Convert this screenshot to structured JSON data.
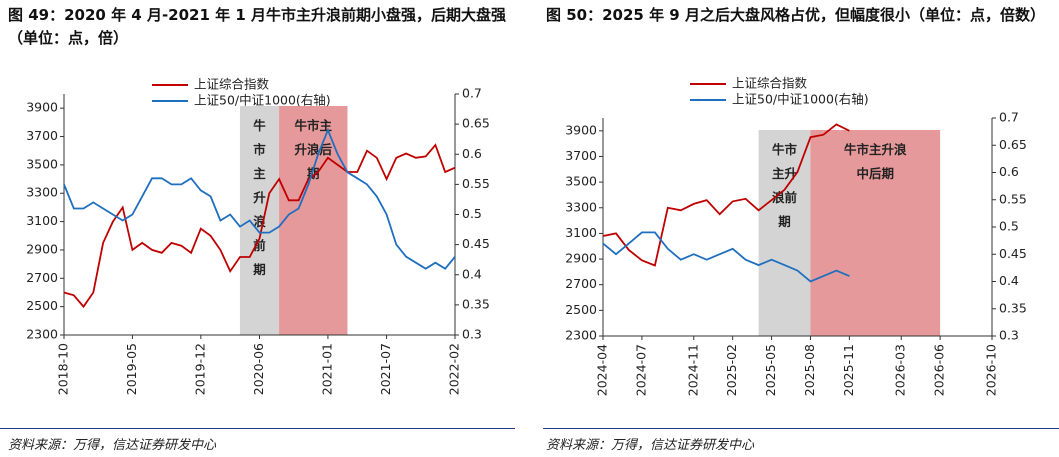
{
  "chart_data": [
    {
      "type": "line",
      "title": "图 49：2020 年 4 月-2021 年 1 月牛市主升浪前期小盘强，后期大盘强（单位：点，倍）",
      "source": "资料来源：万得，信达证券研发中心",
      "x": [
        "2018-10",
        "2018-11",
        "2018-12",
        "2019-01",
        "2019-02",
        "2019-03",
        "2019-04",
        "2019-05",
        "2019-06",
        "2019-07",
        "2019-08",
        "2019-09",
        "2019-10",
        "2019-11",
        "2019-12",
        "2020-01",
        "2020-02",
        "2020-03",
        "2020-04",
        "2020-05",
        "2020-06",
        "2020-07",
        "2020-08",
        "2020-09",
        "2020-10",
        "2020-11",
        "2020-12",
        "2021-01",
        "2021-02",
        "2021-03",
        "2021-04",
        "2021-05",
        "2021-06",
        "2021-07",
        "2021-08",
        "2021-09",
        "2021-10",
        "2021-11",
        "2021-12",
        "2022-01",
        "2022-02"
      ],
      "xlim": [
        "2018-10",
        "2022-02"
      ],
      "xticks": [
        "2018-10",
        "2019-05",
        "2019-12",
        "2020-06",
        "2021-01",
        "2021-07",
        "2022-02"
      ],
      "series": [
        {
          "name": "上证综合指数",
          "color": "#c00000",
          "values": [
            2600,
            2580,
            2500,
            2600,
            2950,
            3100,
            3200,
            2900,
            2950,
            2900,
            2880,
            2950,
            2930,
            2880,
            3050,
            3000,
            2900,
            2750,
            2850,
            2850,
            2980,
            3300,
            3400,
            3250,
            3250,
            3400,
            3450,
            3550,
            3500,
            3450,
            3450,
            3600,
            3550,
            3400,
            3550,
            3580,
            3550,
            3560,
            3640,
            3450,
            3480
          ]
        },
        {
          "name": "上证50/中证1000(右轴)",
          "color": "#1f6fbf",
          "axis": "y2",
          "values": [
            0.55,
            0.51,
            0.51,
            0.52,
            0.51,
            0.5,
            0.49,
            0.5,
            0.53,
            0.56,
            0.56,
            0.55,
            0.55,
            0.56,
            0.54,
            0.53,
            0.49,
            0.5,
            0.48,
            0.49,
            0.47,
            0.47,
            0.48,
            0.5,
            0.51,
            0.55,
            0.6,
            0.64,
            0.6,
            0.57,
            0.56,
            0.55,
            0.53,
            0.5,
            0.45,
            0.43,
            0.42,
            0.41,
            0.42,
            0.41,
            0.43
          ]
        }
      ],
      "ylim": [
        2300,
        4000
      ],
      "yticks": [
        2300,
        2500,
        2700,
        2900,
        3100,
        3300,
        3500,
        3700,
        3900
      ],
      "y2lim": [
        0.3,
        0.7
      ],
      "y2ticks": [
        0.3,
        0.35,
        0.4,
        0.45,
        0.5,
        0.55,
        0.6,
        0.65,
        0.7
      ],
      "regions": [
        {
          "start": "2020-04",
          "end": "2020-08",
          "color": "#d4d4d4",
          "label": "牛市主升浪前期"
        },
        {
          "start": "2020-08",
          "end": "2021-03",
          "color": "#e6999b",
          "label": "牛市主升浪后期"
        }
      ]
    },
    {
      "type": "line",
      "title": "图 50：2025 年 9 月之后大盘风格占优，但幅度很小（单位：点，倍数）",
      "source": "资料来源：万得，信达证券研发中心",
      "x": [
        "2024-04",
        "2024-05",
        "2024-06",
        "2024-07",
        "2024-08",
        "2024-09",
        "2024-10",
        "2024-11",
        "2024-12",
        "2025-01",
        "2025-02",
        "2025-03",
        "2025-04",
        "2025-05",
        "2025-06",
        "2025-07",
        "2025-08",
        "2025-09",
        "2025-10",
        "2025-11"
      ],
      "xlim": [
        "2024-04",
        "2026-10"
      ],
      "xticks": [
        "2024-04",
        "2024-07",
        "2024-11",
        "2025-02",
        "2025-05",
        "2025-08",
        "2025-11",
        "2026-03",
        "2026-06",
        "2026-10"
      ],
      "series": [
        {
          "name": "上证综合指数",
          "color": "#c00000",
          "values": [
            3080,
            3100,
            2970,
            2890,
            2850,
            3300,
            3280,
            3330,
            3360,
            3250,
            3350,
            3370,
            3280,
            3360,
            3440,
            3580,
            3850,
            3870,
            3950,
            3900
          ]
        },
        {
          "name": "上证50/中证1000(右轴)",
          "color": "#1f6fbf",
          "axis": "y2",
          "values": [
            0.47,
            0.45,
            0.47,
            0.49,
            0.49,
            0.46,
            0.44,
            0.45,
            0.44,
            0.45,
            0.46,
            0.44,
            0.43,
            0.44,
            0.43,
            0.42,
            0.4,
            0.41,
            0.42,
            0.41
          ]
        }
      ],
      "ylim": [
        2300,
        4000
      ],
      "yticks": [
        2300,
        2500,
        2700,
        2900,
        3100,
        3300,
        3500,
        3700,
        3900
      ],
      "y2lim": [
        0.3,
        0.7
      ],
      "y2ticks": [
        0.3,
        0.35,
        0.4,
        0.45,
        0.5,
        0.55,
        0.6,
        0.65,
        0.7
      ],
      "regions": [
        {
          "start": "2025-04",
          "end": "2025-08",
          "color": "#d4d4d4",
          "label": "牛市主升浪前期"
        },
        {
          "start": "2025-08",
          "end": "2026-06",
          "color": "#e6999b",
          "label": "牛市主升浪中后期"
        }
      ]
    }
  ]
}
